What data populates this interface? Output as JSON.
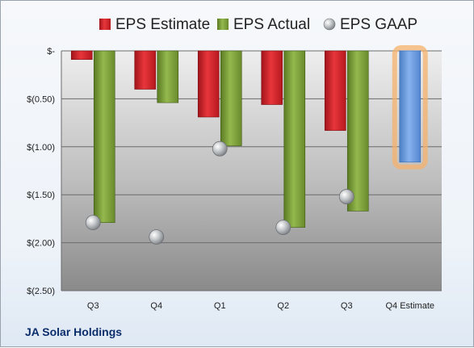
{
  "company": "JA Solar Holdings",
  "chart_data": {
    "type": "bar",
    "categories": [
      "Q3",
      "Q4",
      "Q1",
      "Q2",
      "Q3",
      "Q4 Estimate"
    ],
    "ylim": [
      -2.5,
      0
    ],
    "yticks": [
      0,
      -0.5,
      -1.0,
      -1.5,
      -2.0,
      -2.5
    ],
    "ytick_labels": [
      "$-",
      "$(0.50)",
      "$(1.00)",
      "$(1.50)",
      "$(2.00)",
      "$(2.50)"
    ],
    "grid": true,
    "legend": "top",
    "series": [
      {
        "name": "EPS Estimate",
        "kind": "bar",
        "color": "#d9262b",
        "values": [
          -0.09,
          -0.4,
          -0.69,
          -0.56,
          -0.83,
          -1.16
        ]
      },
      {
        "name": "EPS Actual",
        "kind": "bar",
        "color": "#7ea13c",
        "values": [
          -1.79,
          -0.54,
          -0.99,
          -1.84,
          -1.67,
          null
        ]
      },
      {
        "name": "EPS GAAP",
        "kind": "marker",
        "color": "#b8bcc0",
        "values": [
          -1.79,
          -1.94,
          -1.02,
          -1.84,
          -1.52,
          null
        ]
      }
    ],
    "estimate_bar_color": "#6b9fe0",
    "estimate_glow_color": "#f5b26b"
  }
}
